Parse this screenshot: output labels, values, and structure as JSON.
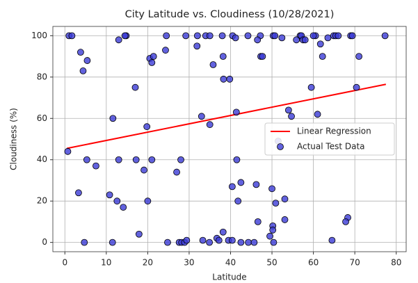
{
  "chart_data": {
    "type": "scatter",
    "title": "City Latitude vs. Cloudiness (10/28/2021)",
    "x_label": "Latitude",
    "y_label": "Cloudiness (%)",
    "xlim": [
      -2.9,
      82.4
    ],
    "ylim": [
      -4.5,
      104.5
    ],
    "xticks": [
      0,
      10,
      20,
      30,
      40,
      50,
      60,
      70,
      80
    ],
    "yticks": [
      0,
      20,
      40,
      60,
      80,
      100
    ],
    "grid": true,
    "legend": "center right",
    "series": [
      {
        "name": "Linear Regression",
        "kind": "line",
        "color": "#ff0000",
        "x": [
          0.5,
          77.5
        ],
        "values": [
          45.5,
          76.5
        ]
      },
      {
        "name": "Actual Test Data",
        "kind": "points",
        "color": "#3b3bd6",
        "x": [
          1,
          1.7,
          14.8,
          24.5,
          29.2,
          32,
          34,
          35,
          38,
          40.5,
          44.2,
          47.2,
          50.3,
          50.7,
          60.5,
          64.9,
          65.4,
          66,
          69,
          69.4,
          77.3,
          56.8,
          57.1,
          3.8,
          4.4,
          5.4,
          13,
          14.5,
          17,
          20.5,
          21,
          21.4,
          24.3,
          31.9,
          35.8,
          38.3,
          38.2,
          39.8,
          41.2,
          46.5,
          47.3,
          47.7,
          52.4,
          55.9,
          57.5,
          58,
          59.5,
          60,
          61,
          61.7,
          62.2,
          63.5,
          71,
          70.4,
          0.7,
          5.3,
          7.5,
          11.6,
          13,
          17.2,
          19.1,
          19.8,
          21,
          27,
          28,
          33,
          35,
          41.4,
          41.5,
          51.5,
          54,
          54.7,
          68.3,
          67.8,
          3.3,
          4.7,
          10.8,
          12.6,
          14.1,
          20,
          11.5,
          17.9,
          24.8,
          27.6,
          28.2,
          28.9,
          29.4,
          33.3,
          34.9,
          36.7,
          37.2,
          38.2,
          39.5,
          40.4,
          40.4,
          41.8,
          42.5,
          42.5,
          44.3,
          45.7,
          46.2,
          46.6,
          49.5,
          50,
          50.2,
          50.2,
          50.4,
          50.9,
          53.1,
          53.1,
          64.5
        ],
        "values": [
          100,
          100,
          100,
          100,
          100,
          100,
          100,
          100,
          100,
          100,
          100,
          100,
          100,
          100,
          100,
          100,
          100,
          100,
          100,
          100,
          100,
          100,
          100,
          92,
          83,
          88,
          98,
          100,
          75,
          89,
          87,
          90,
          93,
          95,
          86,
          79,
          90,
          79,
          99,
          98,
          90,
          90,
          99,
          98,
          98,
          98,
          75,
          100,
          62,
          96,
          90,
          99,
          90,
          75,
          44,
          40,
          37,
          60,
          40,
          40,
          35,
          56,
          40,
          34,
          40,
          61,
          57,
          63,
          40,
          49,
          64,
          61,
          12,
          10,
          24,
          0,
          23,
          20,
          17,
          20,
          0,
          4,
          0,
          0,
          0,
          0,
          1,
          1,
          0,
          2,
          1,
          5,
          1,
          27,
          1,
          20,
          29,
          0,
          0,
          0,
          28,
          10,
          3,
          26,
          8,
          6,
          0,
          19,
          21,
          11,
          1
        ]
      }
    ]
  }
}
